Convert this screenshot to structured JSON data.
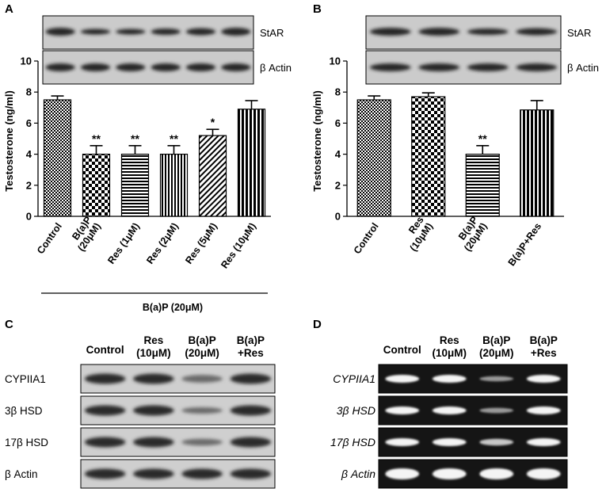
{
  "panels": {
    "A": {
      "letter": "A",
      "blots": [
        "StAR",
        "β Actin"
      ],
      "group_label": "B(a)P (20μM)",
      "chart_data": {
        "type": "bar",
        "title": "",
        "xlabel": "",
        "ylabel": "Testosterone (ng/ml)",
        "ylim": [
          0,
          10
        ],
        "yticks": [
          "0",
          "2",
          "4",
          "6",
          "8",
          "10"
        ],
        "categories": [
          "Control",
          "B(a)P (20μM)",
          "Res (1μM)",
          "Res (2μM)",
          "Res (5μM)",
          "Res (10μM)"
        ],
        "category_lines": [
          [
            "Control"
          ],
          [
            "B(a)P",
            "(20μM)"
          ],
          [
            "Res (1μM)"
          ],
          [
            "Res (2μM)"
          ],
          [
            "Res (5μM)"
          ],
          [
            "Res (10μM)"
          ]
        ],
        "values": [
          7.5,
          4.0,
          4.0,
          4.0,
          5.2,
          6.9
        ],
        "errors": [
          0.25,
          0.55,
          0.55,
          0.55,
          0.4,
          0.55
        ],
        "significance": [
          "",
          "**",
          "**",
          "**",
          "*",
          ""
        ],
        "patterns": [
          "dots",
          "checker",
          "hlines",
          "vlines",
          "diag",
          "vbold"
        ]
      }
    },
    "B": {
      "letter": "B",
      "blots": [
        "StAR",
        "β Actin"
      ],
      "chart_data": {
        "type": "bar",
        "title": "",
        "xlabel": "",
        "ylabel": "Testosterone (ng/ml)",
        "ylim": [
          0,
          10
        ],
        "yticks": [
          "0",
          "2",
          "4",
          "6",
          "8",
          "10"
        ],
        "categories": [
          "Control",
          "Res (10μM)",
          "B(a)P (20μM)",
          "B(a)P+Res"
        ],
        "category_lines": [
          [
            "Control"
          ],
          [
            "Res",
            "(10μM)"
          ],
          [
            "B(a)P",
            "(20μM)"
          ],
          [
            "B(a)P+Res"
          ]
        ],
        "values": [
          7.5,
          7.7,
          4.0,
          6.85
        ],
        "errors": [
          0.25,
          0.25,
          0.55,
          0.6
        ],
        "significance": [
          "",
          "",
          "**",
          ""
        ],
        "patterns": [
          "dots",
          "checker",
          "hlines",
          "vbold"
        ]
      }
    },
    "C": {
      "letter": "C",
      "columns": [
        [
          "Control"
        ],
        [
          "Res",
          "(10μM)"
        ],
        [
          "B(a)P",
          "(20μM)"
        ],
        [
          "B(a)P",
          "+Res"
        ]
      ],
      "rows": [
        "CYPIIA1",
        "3β HSD",
        "17β HSD",
        "β Actin"
      ]
    },
    "D": {
      "letter": "D",
      "columns": [
        [
          "Control"
        ],
        [
          "Res",
          "(10μM)"
        ],
        [
          "B(a)P",
          "(20μM)"
        ],
        [
          "B(a)P",
          "+Res"
        ]
      ],
      "rows": [
        "CYPIIA1",
        "3β HSD",
        "17β HSD",
        "β Actin"
      ]
    }
  },
  "colors": {
    "ink": "#000000",
    "blot_bg": "#c9c9c9",
    "band": "#2a2a2a",
    "gel_bg": "#111111",
    "gel_band": "#f2f2f2"
  }
}
